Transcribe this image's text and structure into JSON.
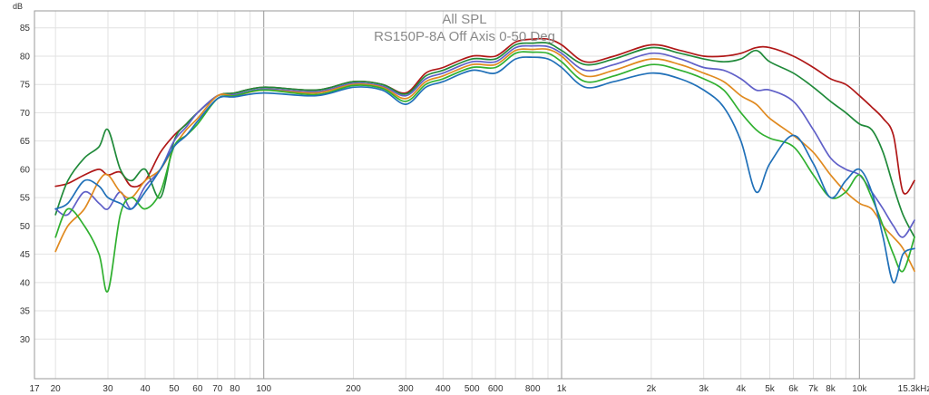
{
  "chart_data": {
    "type": "line",
    "title": "All SPL",
    "subtitle": "RS150P-8A Off Axis 0-50 Deg",
    "ylabel": "dB",
    "xscale": "log",
    "xlim": [
      17,
      15300
    ],
    "ylim": [
      23,
      88
    ],
    "grid": true,
    "y_ticks": [
      30,
      35,
      40,
      45,
      50,
      55,
      60,
      65,
      70,
      75,
      80,
      85
    ],
    "x_ticks": [
      {
        "v": 17,
        "label": "17"
      },
      {
        "v": 20,
        "label": "20"
      },
      {
        "v": 30,
        "label": "30"
      },
      {
        "v": 40,
        "label": "40"
      },
      {
        "v": 50,
        "label": "50"
      },
      {
        "v": 60,
        "label": "60"
      },
      {
        "v": 70,
        "label": "70"
      },
      {
        "v": 80,
        "label": "80"
      },
      {
        "v": 100,
        "label": "100"
      },
      {
        "v": 200,
        "label": "200"
      },
      {
        "v": 300,
        "label": "300"
      },
      {
        "v": 400,
        "label": "400"
      },
      {
        "v": 500,
        "label": "500"
      },
      {
        "v": 600,
        "label": "600"
      },
      {
        "v": 800,
        "label": "800"
      },
      {
        "v": 1000,
        "label": "1k"
      },
      {
        "v": 2000,
        "label": "2k"
      },
      {
        "v": 3000,
        "label": "3k"
      },
      {
        "v": 4000,
        "label": "4k"
      },
      {
        "v": 5000,
        "label": "5k"
      },
      {
        "v": 6000,
        "label": "6k"
      },
      {
        "v": 7000,
        "label": "7k"
      },
      {
        "v": 8000,
        "label": "8k"
      },
      {
        "v": 10000,
        "label": "10k"
      },
      {
        "v": 15300,
        "label": "15.3kHz"
      }
    ],
    "series": [
      {
        "color": "#b01818",
        "x": [
          20,
          22,
          25,
          28,
          30,
          33,
          36,
          40,
          45,
          50,
          55,
          60,
          70,
          80,
          100,
          150,
          200,
          250,
          300,
          350,
          400,
          500,
          600,
          700,
          800,
          900,
          1000,
          1200,
          1500,
          2000,
          2500,
          3000,
          3500,
          4000,
          4500,
          5000,
          6000,
          7000,
          8000,
          9000,
          10000,
          11000,
          12000,
          13000,
          14000,
          15300
        ],
        "y": [
          57,
          57.5,
          59,
          60,
          59,
          59.5,
          57,
          58,
          63,
          66,
          68,
          70,
          73,
          73.5,
          74.5,
          74,
          75.5,
          75,
          73.5,
          77,
          78,
          80,
          80,
          82.5,
          83,
          83,
          82,
          79,
          80,
          82,
          81,
          80,
          80,
          80.5,
          81.5,
          81.5,
          80,
          78,
          76,
          75,
          73,
          71,
          69,
          66,
          56,
          58
        ]
      },
      {
        "color": "#208a3a",
        "x": [
          20,
          22,
          25,
          28,
          30,
          33,
          36,
          40,
          45,
          50,
          55,
          60,
          70,
          80,
          100,
          150,
          200,
          250,
          300,
          350,
          400,
          500,
          600,
          700,
          800,
          900,
          1000,
          1200,
          1500,
          2000,
          2500,
          3000,
          3500,
          4000,
          4500,
          5000,
          6000,
          7000,
          8000,
          9000,
          10000,
          11000,
          12000,
          13000,
          14000,
          15300
        ],
        "y": [
          52,
          58,
          62,
          64,
          67,
          60,
          58,
          60,
          55,
          65,
          68,
          70,
          73,
          73.5,
          74.5,
          74,
          75.5,
          75,
          73.3,
          76.5,
          77.5,
          79.5,
          79.5,
          82,
          82.3,
          82.3,
          81,
          78.5,
          79.5,
          81.5,
          80.5,
          79.5,
          79,
          79.5,
          81,
          79,
          77,
          74.5,
          72,
          70,
          68,
          67,
          63,
          57,
          52,
          48
        ]
      },
      {
        "color": "#6060c8",
        "x": [
          20,
          22,
          25,
          28,
          30,
          33,
          36,
          40,
          45,
          50,
          55,
          60,
          70,
          80,
          100,
          150,
          200,
          250,
          300,
          350,
          400,
          500,
          600,
          700,
          800,
          900,
          1000,
          1200,
          1500,
          2000,
          2500,
          3000,
          3500,
          4000,
          4500,
          5000,
          6000,
          7000,
          8000,
          9000,
          10000,
          11000,
          12000,
          13000,
          14000,
          15300
        ],
        "y": [
          53,
          52,
          56,
          54,
          53,
          56,
          53,
          57,
          60,
          65,
          67.5,
          70,
          73,
          73.2,
          74.2,
          73.7,
          75.2,
          74.7,
          73,
          76,
          77,
          79,
          79,
          81.5,
          81.8,
          81.7,
          80.5,
          77.5,
          78.5,
          80.5,
          79.5,
          78,
          77.5,
          76,
          74,
          74,
          72,
          67,
          62,
          60,
          59,
          56,
          53,
          50,
          48,
          51
        ]
      },
      {
        "color": "#e08a20",
        "x": [
          20,
          22,
          25,
          28,
          30,
          33,
          36,
          40,
          45,
          50,
          55,
          60,
          70,
          80,
          100,
          150,
          200,
          250,
          300,
          350,
          400,
          500,
          600,
          700,
          800,
          900,
          1000,
          1200,
          1500,
          2000,
          2500,
          3000,
          3500,
          4000,
          4500,
          5000,
          6000,
          7000,
          8000,
          9000,
          10000,
          11000,
          12000,
          13000,
          14000,
          15300
        ],
        "y": [
          45.5,
          50,
          53,
          58,
          59,
          56,
          55,
          58,
          60,
          64,
          67,
          69,
          73,
          73,
          74,
          73.5,
          75,
          74.5,
          72.5,
          75.5,
          76.5,
          78.5,
          78.5,
          81,
          81.2,
          81.2,
          80,
          76.5,
          77.5,
          79.5,
          78.5,
          77,
          75.5,
          73,
          71.5,
          69,
          66,
          63,
          59,
          56,
          54,
          53,
          50,
          48,
          46,
          42
        ]
      },
      {
        "color": "#30b030",
        "x": [
          20,
          22,
          25,
          28,
          30,
          33,
          36,
          40,
          45,
          50,
          55,
          60,
          70,
          80,
          100,
          150,
          200,
          250,
          300,
          350,
          400,
          500,
          600,
          700,
          800,
          900,
          1000,
          1200,
          1500,
          2000,
          2500,
          3000,
          3500,
          4000,
          4500,
          5000,
          6000,
          7000,
          8000,
          9000,
          10000,
          11000,
          12000,
          13000,
          14000,
          15300
        ],
        "y": [
          48,
          53,
          50,
          45,
          38.5,
          52,
          55,
          53,
          56,
          64,
          66,
          68,
          72.5,
          73,
          74,
          73.2,
          74.8,
          74.3,
          72,
          75,
          76,
          78,
          78,
          80.5,
          80.7,
          80.5,
          79,
          75.5,
          76.5,
          78.5,
          77.5,
          76,
          74,
          70,
          67,
          65.5,
          64,
          59,
          55,
          56,
          59,
          55,
          50,
          45,
          42,
          48
        ]
      },
      {
        "color": "#2070b8",
        "x": [
          20,
          22,
          25,
          28,
          30,
          33,
          36,
          40,
          45,
          50,
          55,
          60,
          70,
          80,
          100,
          150,
          200,
          250,
          300,
          350,
          400,
          500,
          600,
          700,
          800,
          900,
          1000,
          1200,
          1500,
          2000,
          2500,
          3000,
          3500,
          4000,
          4500,
          5000,
          6000,
          7000,
          8000,
          9000,
          10000,
          11000,
          12000,
          13000,
          14000,
          15300
        ],
        "y": [
          53,
          54,
          58,
          57,
          55,
          54,
          53,
          56,
          60,
          64,
          66,
          68.5,
          72.5,
          72.8,
          73.5,
          73,
          74.5,
          74,
          71.5,
          74.5,
          75.5,
          77.5,
          77,
          79.5,
          79.8,
          79.5,
          78,
          74.5,
          75.5,
          77,
          76,
          74,
          71,
          65,
          56,
          61,
          66,
          61,
          55,
          58,
          60,
          56,
          48,
          40,
          45,
          46
        ]
      }
    ]
  }
}
